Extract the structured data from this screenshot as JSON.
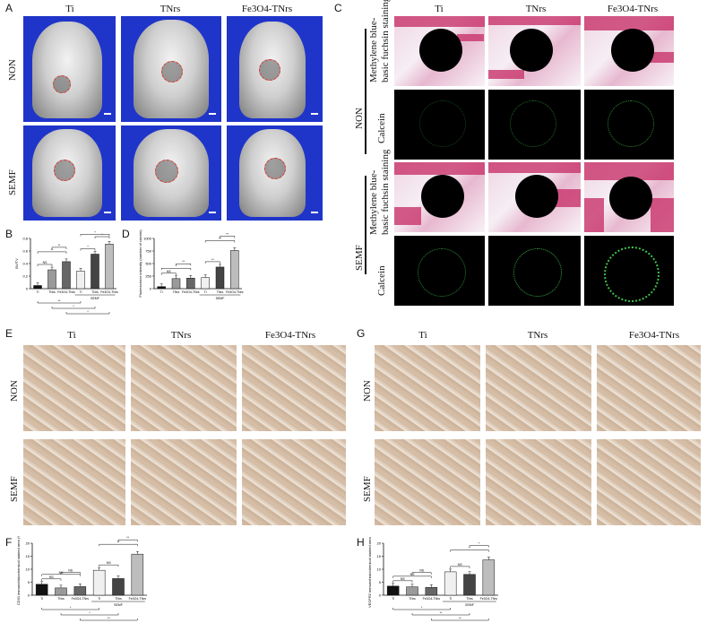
{
  "panels": {
    "A": "A",
    "B": "B",
    "C": "C",
    "D": "D",
    "E": "E",
    "F": "F",
    "G": "G",
    "H": "H"
  },
  "groups": {
    "ti": "Ti",
    "tnrs": "TNrs",
    "fe": "Fe3O4-TNrs"
  },
  "conditions": {
    "non": "NON",
    "semf": "SEMF"
  },
  "stain_labels": {
    "mbf_line1": "Methylene blue-",
    "mbf_line2": "basic fuchsin staining",
    "calcein": "Calcein"
  },
  "chart_data": [
    {
      "panel": "B",
      "type": "bar",
      "ylabel": "BV/TV",
      "ylim": [
        0,
        0.8
      ],
      "categories": [
        "Ti",
        "TNrs",
        "Fe3O4-TNrs",
        "Ti",
        "TNrs",
        "Fe3O4-TNrs"
      ],
      "values": [
        0.05,
        0.3,
        0.43,
        0.28,
        0.55,
        0.71
      ],
      "group_label": "SEMF",
      "annotations": [
        "NS",
        "**",
        "**",
        "*",
        "*",
        "*",
        "**",
        "*",
        "*"
      ]
    },
    {
      "panel": "D",
      "type": "bar",
      "ylabel": "Fluorescence intensity (number of calcein)",
      "ylim": [
        0,
        1000
      ],
      "categories": [
        "Ti",
        "TNrs",
        "Fe3O4-TNrs",
        "Ti",
        "TNrs",
        "Fe3O4-TNrs"
      ],
      "values": [
        40,
        200,
        210,
        220,
        430,
        760
      ],
      "group_label": "SEMF",
      "annotations": [
        "NS",
        "*",
        "**",
        "**",
        "**",
        "**"
      ]
    },
    {
      "panel": "F",
      "type": "bar",
      "ylabel": "CD31 immunohistochemical stained area (%)",
      "ylim": [
        0,
        20
      ],
      "categories": [
        "Ti",
        "TNrs",
        "Fe3O4-TNrs",
        "Ti",
        "TNrs",
        "Fe3O4-TNrs"
      ],
      "values": [
        4.2,
        2.8,
        3.3,
        9.6,
        6.4,
        15.8
      ],
      "group_label": "SEMF",
      "annotations": [
        "NS",
        "NS",
        "NS",
        "NS",
        "**",
        "**",
        "*",
        "*",
        "**"
      ]
    },
    {
      "panel": "H",
      "type": "bar",
      "ylabel": "VEGFR2 immunohistochemical stained area (%)",
      "ylim": [
        0,
        20
      ],
      "categories": [
        "Ti",
        "TNrs",
        "Fe3O4-TNrs",
        "Ti",
        "TNrs",
        "Fe3O4-TNrs"
      ],
      "values": [
        3.5,
        3.2,
        3.0,
        9.0,
        8.0,
        13.6
      ],
      "group_label": "SEMF",
      "annotations": [
        "NS",
        "NS",
        "NS",
        "NS",
        "*",
        "*",
        "*",
        "**",
        "**"
      ]
    }
  ]
}
